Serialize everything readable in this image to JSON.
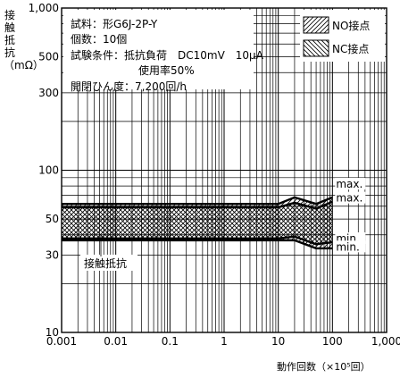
{
  "chart_data": {
    "type": "area",
    "xlabel": "動作回数（×10⁵回）",
    "ylabel": "接触抵抗（mΩ）",
    "x_scale": "log",
    "y_scale": "log",
    "xlim": [
      0.001,
      1000
    ],
    "ylim": [
      10,
      1000
    ],
    "x_tick_labels": [
      "0.001",
      "0.01",
      "0.1",
      "1",
      "10",
      "100",
      "1,000"
    ],
    "y_tick_labels": [
      "1,000",
      "500",
      "300",
      "100",
      "50",
      "30",
      "10"
    ],
    "y_tick_values": [
      1000,
      500,
      300,
      100,
      50,
      30,
      10
    ],
    "grid": true,
    "legend_position": "top-right",
    "conditions": [
      "試料：形G6J-2P-Y",
      "個数：10個",
      "試験条件：抵抗負荷　DC10mV　10μA",
      "使用率50%",
      "開閉ひん度：7,200回/h"
    ],
    "annotation": "接触抵抗",
    "series": [
      {
        "name": "NO接点",
        "x": [
          0.001,
          10,
          20,
          50,
          100
        ],
        "max": [
          62,
          62,
          68,
          62,
          68
        ],
        "min": [
          37,
          37,
          37,
          33,
          33
        ]
      },
      {
        "name": "NC接点",
        "x": [
          0.001,
          10,
          20,
          50,
          100
        ],
        "max": [
          59,
          59,
          63,
          58,
          64
        ],
        "min": [
          38,
          38,
          39,
          35,
          36
        ]
      }
    ],
    "curve_labels": {
      "max": "max.",
      "min": "min."
    }
  },
  "colors": {
    "line": "#000000",
    "background": "#ffffff"
  }
}
